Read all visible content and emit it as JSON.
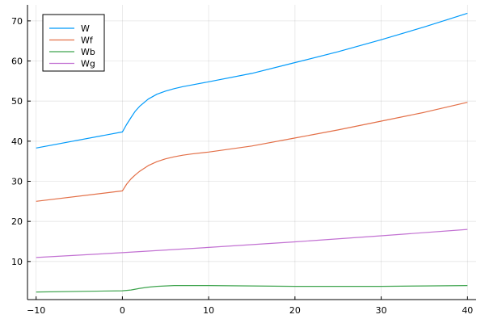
{
  "chart_data": {
    "type": "line",
    "title": "",
    "xlabel": "",
    "ylabel": "",
    "xlim": [
      -11,
      41
    ],
    "ylim": [
      0.5,
      74
    ],
    "xticks": [
      -10,
      0,
      10,
      20,
      30,
      40
    ],
    "yticks": [
      10,
      20,
      30,
      40,
      50,
      60,
      70
    ],
    "grid": true,
    "legend_position": "top-left",
    "series": [
      {
        "name": "W",
        "color": "#009AFA",
        "x": [
          -10,
          0,
          0.5,
          1,
          1.5,
          2,
          3,
          4,
          5,
          6,
          7,
          8,
          10,
          15,
          20,
          25,
          30,
          35,
          40
        ],
        "y": [
          38.3,
          42.3,
          44.2,
          45.9,
          47.5,
          48.7,
          50.5,
          51.7,
          52.5,
          53.1,
          53.6,
          54.0,
          54.8,
          56.9,
          59.6,
          62.3,
          65.3,
          68.5,
          71.9
        ]
      },
      {
        "name": "Wf",
        "color": "#E36F47",
        "x": [
          -10,
          0,
          0.5,
          1,
          1.5,
          2,
          3,
          4,
          5,
          6,
          7,
          8,
          10,
          15,
          20,
          25,
          30,
          35,
          40
        ],
        "y": [
          25.0,
          27.6,
          29.3,
          30.6,
          31.6,
          32.5,
          33.9,
          34.9,
          35.6,
          36.1,
          36.5,
          36.8,
          37.3,
          38.8,
          40.8,
          42.8,
          45.0,
          47.2,
          49.7
        ]
      },
      {
        "name": "Wb",
        "color": "#3EA44E",
        "x": [
          -10,
          0,
          1,
          2,
          3,
          4,
          5,
          6,
          7,
          8,
          10,
          15,
          20,
          25,
          30,
          35,
          40
        ],
        "y": [
          2.4,
          2.7,
          2.9,
          3.3,
          3.6,
          3.8,
          3.9,
          4.0,
          4.0,
          4.0,
          4.0,
          3.9,
          3.8,
          3.8,
          3.8,
          3.9,
          4.0
        ]
      },
      {
        "name": "Wg",
        "color": "#C271D2",
        "x": [
          -10,
          0,
          10,
          20,
          30,
          40
        ],
        "y": [
          11.0,
          12.2,
          13.5,
          14.9,
          16.4,
          18.0
        ]
      }
    ]
  }
}
